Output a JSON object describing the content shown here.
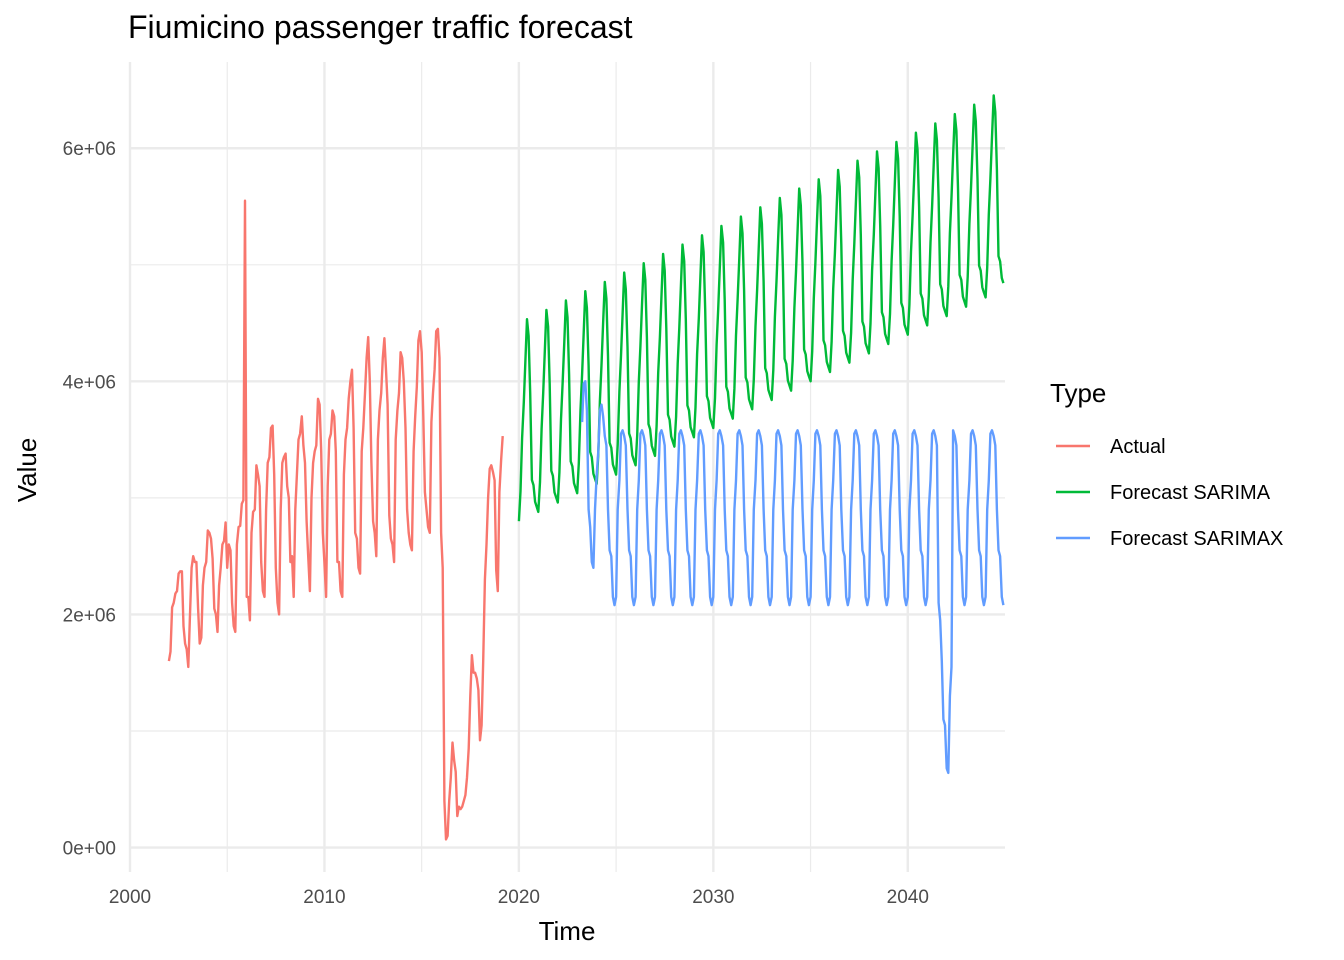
{
  "chart_data": {
    "type": "line",
    "title": "Fiumicino passenger traffic forecast",
    "xlabel": "Time",
    "ylabel": "Value",
    "xlim": [
      2000,
      2045
    ],
    "ylim": [
      0,
      6500000
    ],
    "x_ticks": [
      2000,
      2010,
      2020,
      2030,
      2040
    ],
    "x_tick_labels": [
      "2000",
      "2010",
      "2020",
      "2030",
      "2040"
    ],
    "y_ticks": [
      0,
      2000000,
      4000000,
      6000000
    ],
    "y_tick_labels": [
      "0e+00",
      "2e+06",
      "4e+06",
      "6e+06"
    ],
    "grid": true,
    "legend": {
      "title": "Type",
      "position": "right"
    },
    "series": [
      {
        "name": "Actual",
        "color": "#F8766D",
        "x_start": 2002.0,
        "x_step": 0.0833333,
        "values": [
          1600000,
          1680000,
          2060000,
          2100000,
          2180000,
          2200000,
          2350000,
          2370000,
          2370000,
          1900000,
          1750000,
          1700000,
          1550000,
          2000000,
          2400000,
          2500000,
          2450000,
          2450000,
          2050000,
          1750000,
          1800000,
          2250000,
          2400000,
          2450000,
          2720000,
          2700000,
          2650000,
          2480000,
          2050000,
          2000000,
          1850000,
          2250000,
          2400000,
          2600000,
          2630000,
          2790000,
          2400000,
          2600000,
          2550000,
          2100000,
          1900000,
          1850000,
          2600000,
          2750000,
          2760000,
          2950000,
          2980000,
          5550000,
          2150000,
          2150000,
          1950000,
          2700000,
          2880000,
          2900000,
          3280000,
          3200000,
          3100000,
          2450000,
          2200000,
          2150000,
          2900000,
          3300000,
          3350000,
          3600000,
          3620000,
          3200000,
          2400000,
          2100000,
          2000000,
          2900000,
          3300000,
          3350000,
          3380000,
          3100000,
          3000000,
          2450000,
          2500000,
          2150000,
          2900000,
          3200000,
          3500000,
          3550000,
          3700000,
          3450000,
          3300000,
          2800000,
          2500000,
          2200000,
          3000000,
          3300000,
          3400000,
          3450000,
          3850000,
          3800000,
          3400000,
          2700000,
          2450000,
          2150000,
          3100000,
          3500000,
          3550000,
          3750000,
          3700000,
          3400000,
          2450000,
          2450000,
          2200000,
          2150000,
          3200000,
          3500000,
          3600000,
          3850000,
          4000000,
          4100000,
          3600000,
          2700000,
          2650000,
          2400000,
          2350000,
          3400000,
          3600000,
          3900000,
          4200000,
          4380000,
          4000000,
          3300000,
          2800000,
          2700000,
          2500000,
          3500000,
          3750000,
          3900000,
          4200000,
          4370000,
          4100000,
          3800000,
          2850000,
          2650000,
          2600000,
          2450000,
          3500000,
          3750000,
          3900000,
          4250000,
          4200000,
          4000000,
          3600000,
          2900000,
          2700000,
          2600000,
          2550000,
          3400000,
          3700000,
          3950000,
          4350000,
          4430000,
          4250000,
          3700000,
          3050000,
          2900000,
          2750000,
          2700000,
          3650000,
          3900000,
          4100000,
          4430000,
          4450000,
          4200000,
          2700000,
          2400000,
          400000,
          70000,
          100000,
          400000,
          600000,
          900000,
          750000,
          650000,
          270000,
          350000,
          330000,
          350000,
          400000,
          450000,
          600000,
          850000,
          1300000,
          1650000,
          1500000,
          1500000,
          1450000,
          1350000,
          920000,
          1050000,
          1600000,
          2300000,
          2600000,
          3000000,
          3250000,
          3280000,
          3220000,
          3150000,
          2380000,
          2200000,
          3050000,
          3320000,
          3530000
        ]
      },
      {
        "name": "Forecast SARIMA",
        "color": "#00BA38",
        "x_start": 2020.0,
        "x_step": 0.0833333,
        "periodic": {
          "base": 2800000,
          "trend_per_year": 80000,
          "pattern": [
            0,
            250000,
            700000,
            1000000,
            1350000,
            1700000,
            1550000,
            1050000,
            300000,
            250000,
            100000,
            50000
          ]
        }
      },
      {
        "name": "Forecast SARIMAX",
        "color": "#619CFF",
        "x_start": 2023.25,
        "x_step": 0.0833333,
        "periodic": {
          "pattern": [
            2150000,
            2900000,
            3150000,
            3550000,
            3580000,
            3530000,
            3450000,
            2900000,
            2550000,
            2500000,
            2150000,
            2080000
          ]
        },
        "overrides": [
          {
            "x": 2023.25,
            "value": 3650000
          },
          {
            "x": 2023.3333,
            "value": 3980000
          },
          {
            "x": 2023.4167,
            "value": 4000000
          },
          {
            "x": 2023.5,
            "value": 3750000
          },
          {
            "x": 2023.5833,
            "value": 2900000
          },
          {
            "x": 2023.6667,
            "value": 2750000
          },
          {
            "x": 2023.75,
            "value": 2450000
          },
          {
            "x": 2023.8333,
            "value": 2400000
          },
          {
            "x": 2023.9167,
            "value": 2900000
          },
          {
            "x": 2024.0,
            "value": 3200000
          },
          {
            "x": 2024.0833,
            "value": 3400000
          },
          {
            "x": 2024.1667,
            "value": 3750000
          },
          {
            "x": 2024.25,
            "value": 3800000
          },
          {
            "x": 2024.3333,
            "value": 3700000
          },
          {
            "x": 2041.5833,
            "value": 2100000
          },
          {
            "x": 2041.6667,
            "value": 1950000
          },
          {
            "x": 2041.75,
            "value": 1600000
          },
          {
            "x": 2041.8333,
            "value": 1100000
          },
          {
            "x": 2041.9167,
            "value": 1050000
          },
          {
            "x": 2042.0,
            "value": 680000
          },
          {
            "x": 2042.0833,
            "value": 640000
          },
          {
            "x": 2042.1667,
            "value": 1300000
          },
          {
            "x": 2042.25,
            "value": 1550000
          }
        ]
      }
    ]
  }
}
